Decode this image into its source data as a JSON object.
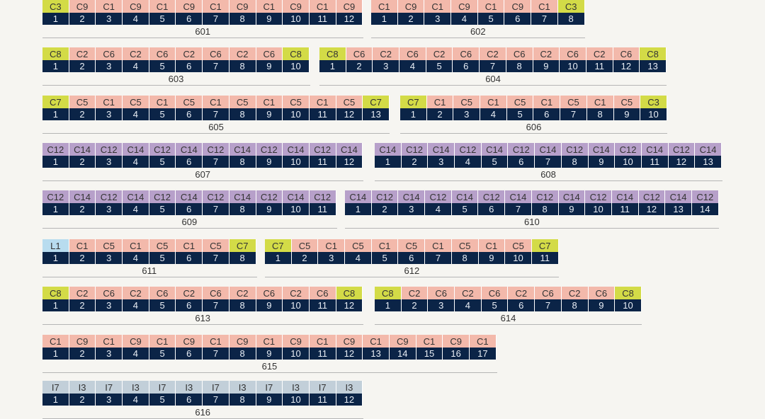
{
  "colors": {
    "C": "#f3b9ab",
    "C_end": "#d3db47",
    "C12_C14": "#b7a0ca",
    "I": "#c2cfd9",
    "L": "#b8dcef",
    "number_bg": "#0b2447"
  },
  "groups": [
    {
      "label": "601",
      "codes": [
        "C3",
        "C9",
        "C1",
        "C9",
        "C1",
        "C9",
        "C1",
        "C9",
        "C1",
        "C9",
        "C1",
        "C9"
      ],
      "numbers": [
        "1",
        "2",
        "3",
        "4",
        "5",
        "6",
        "7",
        "8",
        "9",
        "10",
        "11",
        "12"
      ]
    },
    {
      "label": "602",
      "codes": [
        "C1",
        "C9",
        "C1",
        "C9",
        "C1",
        "C9",
        "C1",
        "C3"
      ],
      "numbers": [
        "1",
        "2",
        "3",
        "4",
        "5",
        "6",
        "7",
        "8"
      ]
    },
    {
      "label": "603",
      "codes": [
        "C8",
        "C2",
        "C6",
        "C2",
        "C6",
        "C2",
        "C6",
        "C2",
        "C6",
        "C8"
      ],
      "numbers": [
        "1",
        "2",
        "3",
        "4",
        "5",
        "6",
        "7",
        "8",
        "9",
        "10"
      ]
    },
    {
      "label": "604",
      "codes": [
        "C8",
        "C6",
        "C2",
        "C6",
        "C2",
        "C6",
        "C2",
        "C6",
        "C2",
        "C6",
        "C2",
        "C6",
        "C8"
      ],
      "numbers": [
        "1",
        "2",
        "3",
        "4",
        "5",
        "6",
        "7",
        "8",
        "9",
        "10",
        "11",
        "12",
        "13"
      ]
    },
    {
      "label": "605",
      "codes": [
        "C7",
        "C5",
        "C1",
        "C5",
        "C1",
        "C5",
        "C1",
        "C5",
        "C1",
        "C5",
        "C1",
        "C5",
        "C7"
      ],
      "numbers": [
        "1",
        "2",
        "3",
        "4",
        "5",
        "6",
        "7",
        "8",
        "9",
        "10",
        "11",
        "12",
        "13"
      ]
    },
    {
      "label": "606",
      "codes": [
        "C7",
        "C1",
        "C5",
        "C1",
        "C5",
        "C1",
        "C5",
        "C1",
        "C5",
        "C3"
      ],
      "numbers": [
        "1",
        "2",
        "3",
        "4",
        "5",
        "6",
        "7",
        "8",
        "9",
        "10"
      ]
    },
    {
      "label": "607",
      "codes": [
        "C12",
        "C14",
        "C12",
        "C14",
        "C12",
        "C14",
        "C12",
        "C14",
        "C12",
        "C14",
        "C12",
        "C14"
      ],
      "numbers": [
        "1",
        "2",
        "3",
        "4",
        "5",
        "6",
        "7",
        "8",
        "9",
        "10",
        "11",
        "12"
      ]
    },
    {
      "label": "608",
      "codes": [
        "C14",
        "C12",
        "C14",
        "C12",
        "C14",
        "C12",
        "C14",
        "C12",
        "C14",
        "C12",
        "C14",
        "C12",
        "C14"
      ],
      "numbers": [
        "1",
        "2",
        "3",
        "4",
        "5",
        "6",
        "7",
        "8",
        "9",
        "10",
        "11",
        "12",
        "13"
      ]
    },
    {
      "label": "609",
      "codes": [
        "C12",
        "C14",
        "C12",
        "C14",
        "C12",
        "C14",
        "C12",
        "C14",
        "C12",
        "C14",
        "C12"
      ],
      "numbers": [
        "1",
        "2",
        "3",
        "4",
        "5",
        "6",
        "7",
        "8",
        "9",
        "10",
        "11"
      ]
    },
    {
      "label": "610",
      "codes": [
        "C14",
        "C12",
        "C14",
        "C12",
        "C14",
        "C12",
        "C14",
        "C12",
        "C14",
        "C12",
        "C14",
        "C12",
        "C14",
        "C12"
      ],
      "numbers": [
        "1",
        "2",
        "3",
        "4",
        "5",
        "6",
        "7",
        "8",
        "9",
        "10",
        "11",
        "12",
        "13",
        "14"
      ]
    },
    {
      "label": "611",
      "codes": [
        "L1",
        "C1",
        "C5",
        "C1",
        "C5",
        "C1",
        "C5",
        "C7"
      ],
      "numbers": [
        "1",
        "2",
        "3",
        "4",
        "5",
        "6",
        "7",
        "8"
      ]
    },
    {
      "label": "612",
      "codes": [
        "C7",
        "C5",
        "C1",
        "C5",
        "C1",
        "C5",
        "C1",
        "C5",
        "C1",
        "C5",
        "C7"
      ],
      "numbers": [
        "1",
        "2",
        "3",
        "4",
        "5",
        "6",
        "7",
        "8",
        "9",
        "10",
        "11"
      ]
    },
    {
      "label": "613",
      "codes": [
        "C8",
        "C2",
        "C6",
        "C2",
        "C6",
        "C2",
        "C6",
        "C2",
        "C6",
        "C2",
        "C6",
        "C8"
      ],
      "numbers": [
        "1",
        "2",
        "3",
        "4",
        "5",
        "6",
        "7",
        "8",
        "9",
        "10",
        "11",
        "12"
      ]
    },
    {
      "label": "614",
      "codes": [
        "C8",
        "C2",
        "C6",
        "C2",
        "C6",
        "C2",
        "C6",
        "C2",
        "C6",
        "C8"
      ],
      "numbers": [
        "1",
        "2",
        "3",
        "4",
        "5",
        "6",
        "7",
        "8",
        "9",
        "10"
      ]
    },
    {
      "label": "615",
      "codes": [
        "C1",
        "C9",
        "C1",
        "C9",
        "C1",
        "C9",
        "C1",
        "C9",
        "C1",
        "C9",
        "C1",
        "C9",
        "C1",
        "C9",
        "C1",
        "C9",
        "C1"
      ],
      "numbers": [
        "1",
        "2",
        "3",
        "4",
        "5",
        "6",
        "7",
        "8",
        "9",
        "10",
        "11",
        "12",
        "13",
        "14",
        "15",
        "16",
        "17"
      ]
    },
    {
      "label": "616",
      "codes": [
        "I7",
        "I3",
        "I7",
        "I3",
        "I7",
        "I3",
        "I7",
        "I3",
        "I7",
        "I3",
        "I7",
        "I3"
      ],
      "numbers": [
        "1",
        "2",
        "3",
        "4",
        "5",
        "6",
        "7",
        "8",
        "9",
        "10",
        "11",
        "12"
      ]
    }
  ]
}
